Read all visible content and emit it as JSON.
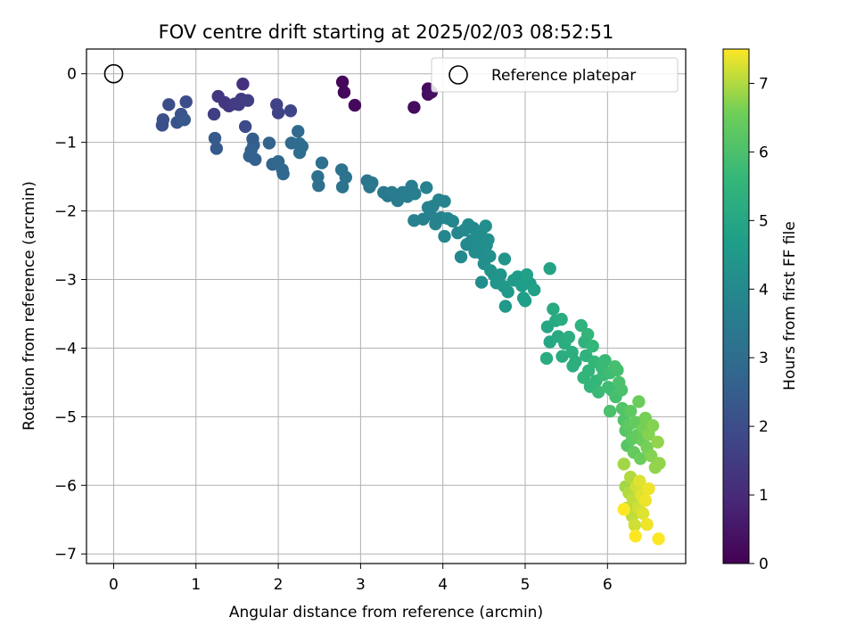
{
  "chart_data": {
    "type": "scatter",
    "title": "FOV centre drift starting at 2025/02/03 08:52:51",
    "xlabel": "Angular distance from reference (arcmin)",
    "ylabel": "Rotation from reference (arcmin)",
    "xlim": [
      -0.33,
      6.95
    ],
    "ylim": [
      -7.14,
      0.36
    ],
    "xticks": [
      0,
      1,
      2,
      3,
      4,
      5,
      6
    ],
    "yticks": [
      0,
      -1,
      -2,
      -3,
      -4,
      -5,
      -6,
      -7
    ],
    "grid": true,
    "colormap": "viridis",
    "colorbar": {
      "label": "Hours from first FF file",
      "range": [
        0,
        7.5
      ],
      "ticks": [
        0,
        1,
        2,
        3,
        4,
        5,
        6,
        7
      ]
    },
    "legend": {
      "position": "top-right",
      "entries": [
        "Reference platepar"
      ]
    },
    "reference": {
      "x": 0,
      "y": 0,
      "name": "Reference platepar"
    },
    "points": [
      [
        2.78,
        -0.12,
        0.15
      ],
      [
        2.8,
        -0.27,
        0.15
      ],
      [
        2.93,
        -0.46,
        0.2
      ],
      [
        3.65,
        -0.49,
        0.25
      ],
      [
        3.82,
        -0.22,
        0.3
      ],
      [
        3.82,
        -0.3,
        0.3
      ],
      [
        3.86,
        -0.27,
        0.35
      ],
      [
        1.57,
        -0.15,
        1.2
      ],
      [
        1.27,
        -0.33,
        1.3
      ],
      [
        1.4,
        -0.47,
        1.4
      ],
      [
        1.35,
        -0.42,
        1.4
      ],
      [
        1.47,
        -0.44,
        1.5
      ],
      [
        1.55,
        -0.37,
        1.5
      ],
      [
        1.52,
        -0.45,
        1.5
      ],
      [
        1.63,
        -0.39,
        1.6
      ],
      [
        1.22,
        -0.59,
        1.6
      ],
      [
        1.98,
        -0.45,
        1.7
      ],
      [
        2.0,
        -0.57,
        1.7
      ],
      [
        2.15,
        -0.54,
        1.8
      ],
      [
        1.6,
        -0.77,
        1.9
      ],
      [
        0.67,
        -0.45,
        2.0
      ],
      [
        0.88,
        -0.41,
        2.0
      ],
      [
        0.6,
        -0.67,
        2.1
      ],
      [
        0.59,
        -0.75,
        2.1
      ],
      [
        0.82,
        -0.59,
        2.2
      ],
      [
        0.77,
        -0.71,
        2.2
      ],
      [
        0.86,
        -0.67,
        2.3
      ],
      [
        1.23,
        -0.94,
        2.4
      ],
      [
        1.25,
        -1.09,
        2.4
      ],
      [
        1.69,
        -0.95,
        2.5
      ],
      [
        1.7,
        -1.04,
        2.5
      ],
      [
        1.67,
        -1.12,
        2.6
      ],
      [
        1.65,
        -1.2,
        2.6
      ],
      [
        1.72,
        -1.25,
        2.6
      ],
      [
        1.89,
        -1.01,
        2.7
      ],
      [
        1.93,
        -1.32,
        2.7
      ],
      [
        2.0,
        -1.28,
        2.8
      ],
      [
        2.05,
        -1.4,
        2.8
      ],
      [
        2.06,
        -1.46,
        2.8
      ],
      [
        2.16,
        -1.01,
        2.9
      ],
      [
        2.24,
        -0.84,
        2.9
      ],
      [
        2.26,
        -1.02,
        3.0
      ],
      [
        2.26,
        -1.15,
        3.0
      ],
      [
        2.29,
        -1.06,
        3.0
      ],
      [
        2.48,
        -1.5,
        3.1
      ],
      [
        2.49,
        -1.63,
        3.1
      ],
      [
        2.53,
        -1.3,
        3.1
      ],
      [
        2.77,
        -1.4,
        3.2
      ],
      [
        2.78,
        -1.65,
        3.2
      ],
      [
        2.82,
        -1.51,
        3.2
      ],
      [
        3.08,
        -1.56,
        3.3
      ],
      [
        3.11,
        -1.65,
        3.3
      ],
      [
        3.14,
        -1.59,
        3.4
      ],
      [
        3.28,
        -1.73,
        3.4
      ],
      [
        3.33,
        -1.78,
        3.4
      ],
      [
        3.38,
        -1.73,
        3.5
      ],
      [
        3.45,
        -1.85,
        3.5
      ],
      [
        3.51,
        -1.73,
        3.5
      ],
      [
        3.57,
        -1.79,
        3.6
      ],
      [
        3.62,
        -1.64,
        3.6
      ],
      [
        3.66,
        -1.75,
        3.6
      ],
      [
        3.65,
        -2.14,
        3.7
      ],
      [
        3.76,
        -2.12,
        3.7
      ],
      [
        3.8,
        -1.66,
        3.7
      ],
      [
        3.82,
        -1.95,
        3.7
      ],
      [
        3.85,
        -2.05,
        3.7
      ],
      [
        3.88,
        -1.93,
        3.8
      ],
      [
        3.91,
        -2.19,
        3.8
      ],
      [
        3.95,
        -1.84,
        3.8
      ],
      [
        3.98,
        -2.1,
        3.8
      ],
      [
        4.02,
        -1.86,
        3.8
      ],
      [
        4.02,
        -2.37,
        3.9
      ],
      [
        4.06,
        -2.11,
        3.9
      ],
      [
        4.12,
        -2.15,
        3.9
      ],
      [
        4.18,
        -2.32,
        3.9
      ],
      [
        4.22,
        -2.67,
        4.0
      ],
      [
        4.26,
        -2.28,
        4.0
      ],
      [
        4.29,
        -2.49,
        4.0
      ],
      [
        4.31,
        -2.2,
        4.0
      ],
      [
        4.35,
        -2.43,
        4.0
      ],
      [
        4.37,
        -2.25,
        4.0
      ],
      [
        4.39,
        -2.6,
        4.1
      ],
      [
        4.41,
        -2.38,
        4.1
      ],
      [
        4.43,
        -2.52,
        4.1
      ],
      [
        4.44,
        -2.41,
        4.1
      ],
      [
        4.46,
        -2.32,
        4.1
      ],
      [
        4.48,
        -2.63,
        4.1
      ],
      [
        4.47,
        -3.04,
        4.1
      ],
      [
        4.5,
        -2.77,
        4.2
      ],
      [
        4.52,
        -2.22,
        4.2
      ],
      [
        4.53,
        -2.5,
        4.2
      ],
      [
        4.55,
        -2.42,
        4.2
      ],
      [
        4.57,
        -2.66,
        4.2
      ],
      [
        4.58,
        -2.87,
        4.3
      ],
      [
        4.62,
        -2.93,
        4.3
      ],
      [
        4.65,
        -3.05,
        4.4
      ],
      [
        4.7,
        -2.93,
        4.4
      ],
      [
        4.75,
        -2.7,
        4.4
      ],
      [
        4.74,
        -3.1,
        4.5
      ],
      [
        4.76,
        -3.39,
        4.5
      ],
      [
        4.79,
        -3.18,
        4.5
      ],
      [
        4.86,
        -3.01,
        4.6
      ],
      [
        4.91,
        -2.96,
        4.6
      ],
      [
        4.96,
        -3.09,
        4.7
      ],
      [
        4.98,
        -3.27,
        4.7
      ],
      [
        5.0,
        -3.31,
        4.7
      ],
      [
        5.06,
        -3.06,
        4.7
      ],
      [
        5.11,
        -3.15,
        4.8
      ],
      [
        5.02,
        -2.93,
        4.8
      ],
      [
        5.3,
        -2.84,
        4.9
      ],
      [
        5.27,
        -3.69,
        5.0
      ],
      [
        5.3,
        -3.91,
        5.0
      ],
      [
        5.34,
        -3.43,
        5.1
      ],
      [
        5.37,
        -3.6,
        5.1
      ],
      [
        5.4,
        -3.83,
        5.1
      ],
      [
        5.44,
        -3.58,
        5.2
      ],
      [
        5.48,
        -3.93,
        5.2
      ],
      [
        5.45,
        -4.12,
        5.2
      ],
      [
        5.26,
        -4.15,
        5.2
      ],
      [
        5.53,
        -3.84,
        5.3
      ],
      [
        5.57,
        -4.06,
        5.3
      ],
      [
        5.61,
        -4.2,
        5.3
      ],
      [
        5.58,
        -4.26,
        5.3
      ],
      [
        5.68,
        -3.67,
        5.4
      ],
      [
        5.72,
        -3.91,
        5.4
      ],
      [
        5.74,
        -4.11,
        5.4
      ],
      [
        5.76,
        -3.8,
        5.5
      ],
      [
        5.77,
        -4.33,
        5.5
      ],
      [
        5.79,
        -4.56,
        5.5
      ],
      [
        5.71,
        -4.43,
        5.5
      ],
      [
        5.82,
        -3.97,
        5.6
      ],
      [
        5.84,
        -4.2,
        5.6
      ],
      [
        5.86,
        -4.48,
        5.6
      ],
      [
        5.89,
        -4.64,
        5.7
      ],
      [
        5.93,
        -4.28,
        5.7
      ],
      [
        5.95,
        -4.39,
        5.7
      ],
      [
        5.97,
        -4.18,
        5.7
      ],
      [
        6.01,
        -4.57,
        5.8
      ],
      [
        6.03,
        -4.36,
        5.8
      ],
      [
        6.05,
        -4.61,
        5.8
      ],
      [
        6.09,
        -4.27,
        5.9
      ],
      [
        6.1,
        -4.71,
        5.9
      ],
      [
        6.12,
        -4.32,
        5.9
      ],
      [
        6.14,
        -4.5,
        6.0
      ],
      [
        6.17,
        -4.61,
        6.0
      ],
      [
        6.03,
        -4.92,
        6.0
      ],
      [
        6.18,
        -4.88,
        6.1
      ],
      [
        6.2,
        -5.05,
        6.1
      ],
      [
        6.22,
        -5.2,
        6.2
      ],
      [
        6.24,
        -5.42,
        6.2
      ],
      [
        6.26,
        -5.12,
        6.3
      ],
      [
        6.28,
        -4.92,
        6.3
      ],
      [
        6.3,
        -5.32,
        6.3
      ],
      [
        6.32,
        -5.52,
        6.4
      ],
      [
        6.34,
        -5.08,
        6.4
      ],
      [
        6.36,
        -5.27,
        6.4
      ],
      [
        6.38,
        -4.78,
        6.5
      ],
      [
        6.4,
        -5.61,
        6.5
      ],
      [
        6.42,
        -5.34,
        6.5
      ],
      [
        6.44,
        -5.17,
        6.6
      ],
      [
        6.46,
        -5.02,
        6.6
      ],
      [
        6.48,
        -5.45,
        6.6
      ],
      [
        6.5,
        -5.26,
        6.7
      ],
      [
        6.53,
        -5.57,
        6.7
      ],
      [
        6.55,
        -5.13,
        6.7
      ],
      [
        6.58,
        -5.74,
        6.8
      ],
      [
        6.61,
        -5.37,
        6.8
      ],
      [
        6.63,
        -5.68,
        6.8
      ],
      [
        6.2,
        -5.69,
        6.9
      ],
      [
        6.22,
        -6.02,
        6.9
      ],
      [
        6.24,
        -6.33,
        7.0
      ],
      [
        6.26,
        -6.11,
        7.0
      ],
      [
        6.28,
        -5.88,
        7.0
      ],
      [
        6.3,
        -6.45,
        7.1
      ],
      [
        6.31,
        -6.2,
        7.1
      ],
      [
        6.33,
        -6.58,
        7.2
      ],
      [
        6.35,
        -6.02,
        7.2
      ],
      [
        6.37,
        -6.33,
        7.2
      ],
      [
        6.39,
        -5.94,
        7.3
      ],
      [
        6.41,
        -6.14,
        7.3
      ],
      [
        6.43,
        -6.41,
        7.3
      ],
      [
        6.46,
        -6.22,
        7.4
      ],
      [
        6.48,
        -6.57,
        7.4
      ],
      [
        6.5,
        -6.05,
        7.4
      ],
      [
        6.34,
        -6.74,
        7.5
      ],
      [
        6.62,
        -6.78,
        7.5
      ],
      [
        6.2,
        -6.35,
        7.5
      ]
    ]
  }
}
